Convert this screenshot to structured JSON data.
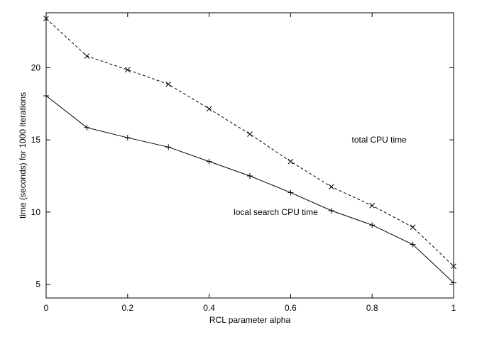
{
  "chart_data": {
    "type": "line",
    "xlabel": "RCL parameter alpha",
    "ylabel": "time (seconds) for 1000 iterations",
    "xlim": [
      0,
      1
    ],
    "ylim": [
      4.05,
      23.8
    ],
    "xticks": [
      0,
      0.2,
      0.4,
      0.6,
      0.8,
      1
    ],
    "xtick_labels": [
      "0",
      "0.2",
      "0.4",
      "0.6",
      "0.8",
      "1"
    ],
    "yticks": [
      5,
      10,
      15,
      20
    ],
    "ytick_labels": [
      "5",
      "10",
      "15",
      "20"
    ],
    "grid": false,
    "x": [
      0,
      0.1,
      0.2,
      0.3,
      0.4,
      0.5,
      0.6,
      0.7,
      0.8,
      0.9,
      1.0
    ],
    "series": [
      {
        "name": "total CPU time",
        "style": "dashed",
        "marker": "x",
        "values": [
          23.4,
          20.8,
          19.85,
          18.85,
          17.15,
          15.4,
          13.5,
          11.75,
          10.45,
          8.95,
          6.25
        ]
      },
      {
        "name": "local search CPU time",
        "style": "solid",
        "marker": "+",
        "values": [
          18.05,
          15.85,
          15.15,
          14.5,
          13.5,
          12.5,
          11.35,
          10.1,
          9.1,
          7.75,
          5.1
        ]
      }
    ],
    "annotations": [
      {
        "text": "total CPU time",
        "x": 0.75,
        "y": 15.0
      },
      {
        "text": "local search CPU time",
        "x": 0.46,
        "y": 10.0
      }
    ]
  }
}
